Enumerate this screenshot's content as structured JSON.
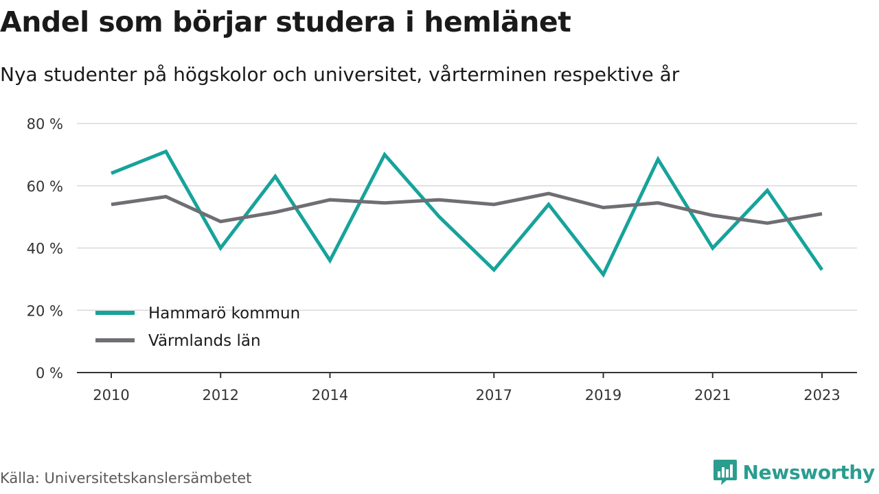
{
  "title": "Andel som börjar studera i hemlänet",
  "subtitle": "Nya studenter på högskolor och universitet, vårterminen respektive år",
  "source": "Källa: Universitetskanslersämbetet",
  "brand": {
    "name": "Newsworthy",
    "icon": "bar-chart-speech-bubble-icon",
    "color": "#2a9d8f"
  },
  "chart_data": {
    "type": "line",
    "x": [
      2010,
      2011,
      2012,
      2013,
      2014,
      2015,
      2016,
      2017,
      2018,
      2019,
      2020,
      2021,
      2022,
      2023
    ],
    "x_ticks": [
      "2010",
      "2012",
      "2014",
      "2017",
      "2019",
      "2021",
      "2023"
    ],
    "y_ticks": [
      "0 %",
      "20 %",
      "40 %",
      "60 %",
      "80 %"
    ],
    "ylim": [
      0,
      80
    ],
    "grid": true,
    "legend_position": "bottom-left",
    "series": [
      {
        "name": "Hammarö kommun",
        "color": "#16a39a",
        "values": [
          64,
          71,
          40,
          63,
          36,
          70,
          50,
          33,
          54,
          31.5,
          68.5,
          40,
          58.5,
          33
        ]
      },
      {
        "name": "Värmlands län",
        "color": "#6f6e73",
        "values": [
          54,
          56.5,
          48.5,
          51.5,
          55.5,
          54.5,
          55.5,
          54,
          57.5,
          53,
          54.5,
          50.5,
          48,
          51
        ]
      }
    ]
  }
}
